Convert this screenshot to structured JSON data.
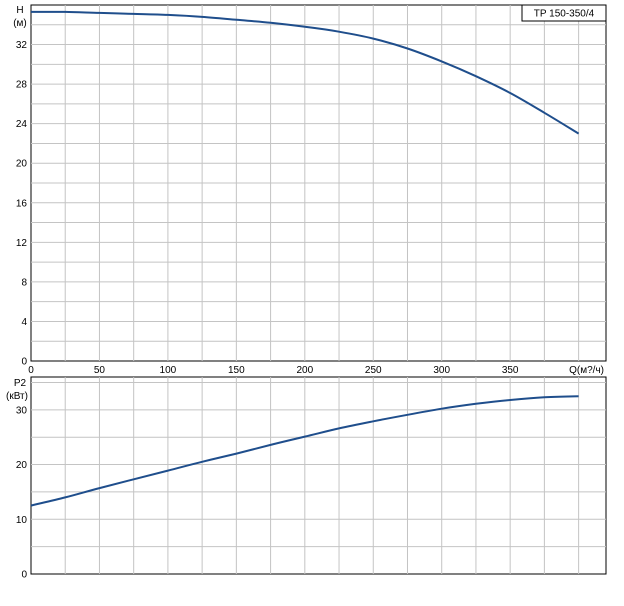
{
  "chart_data": [
    {
      "type": "line",
      "legend": "TP 150-350/4",
      "ylabel": "H",
      "yunit": "(м)",
      "xlabel": "Q(м?/ч)",
      "xlim": [
        0,
        420
      ],
      "ylim": [
        0,
        36
      ],
      "xticks": [
        0,
        50,
        100,
        150,
        200,
        250,
        300,
        350
      ],
      "yticks": [
        0,
        4,
        8,
        12,
        16,
        20,
        24,
        28,
        32
      ],
      "grid": true,
      "series": [
        {
          "color": "#1f4e8c",
          "x": [
            0,
            25,
            50,
            75,
            100,
            125,
            150,
            175,
            200,
            225,
            250,
            275,
            300,
            325,
            350,
            375,
            400
          ],
          "y": [
            35.3,
            35.3,
            35.2,
            35.1,
            35.0,
            34.8,
            34.5,
            34.2,
            33.8,
            33.3,
            32.6,
            31.6,
            30.3,
            28.8,
            27.1,
            25.1,
            23.0
          ]
        }
      ]
    },
    {
      "type": "line",
      "ylabel": "P2",
      "yunit": "(кВт)",
      "xlim": [
        0,
        420
      ],
      "ylim": [
        0,
        36
      ],
      "yticks": [
        0,
        10,
        20,
        30
      ],
      "grid": true,
      "series": [
        {
          "color": "#1f4e8c",
          "x": [
            0,
            25,
            50,
            75,
            100,
            125,
            150,
            175,
            200,
            225,
            250,
            275,
            300,
            325,
            350,
            375,
            400
          ],
          "y": [
            12.5,
            14.0,
            15.7,
            17.3,
            18.9,
            20.5,
            22.0,
            23.6,
            25.1,
            26.6,
            27.9,
            29.1,
            30.2,
            31.1,
            31.8,
            32.3,
            32.5
          ]
        }
      ]
    }
  ]
}
